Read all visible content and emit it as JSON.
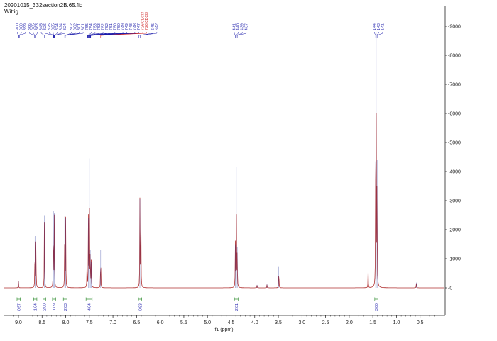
{
  "header": {
    "title": "20201015_332section2B.65.fid",
    "subtitle": "Wittig"
  },
  "chart_data": {
    "type": "line",
    "xlabel": "f1 (ppm)",
    "xlim": [
      9.3,
      0.0
    ],
    "ylim": [
      -1000,
      9500
    ],
    "x_ticks": [
      "9.0",
      "8.5",
      "8.0",
      "7.5",
      "7.0",
      "6.5",
      "6.0",
      "5.5",
      "5.0",
      "4.5",
      "4.0",
      "3.5",
      "3.0",
      "2.5",
      "2.0",
      "1.5",
      "1.0",
      "0.5"
    ],
    "y_ticks": [
      "-0",
      "-1000",
      "-2000",
      "-3000",
      "-4000",
      "-5000",
      "-6000",
      "-7000",
      "-8000",
      "-9000"
    ],
    "series": [
      {
        "peaks": [
          {
            "ppm": 9.0,
            "h": 230
          },
          {
            "ppm": 8.65,
            "h": 1750
          },
          {
            "ppm": 8.63,
            "h": 1780
          },
          {
            "ppm": 8.45,
            "h": 2500
          },
          {
            "ppm": 8.26,
            "h": 2650
          },
          {
            "ppm": 8.24,
            "h": 2560
          },
          {
            "ppm": 8.02,
            "h": 2470
          },
          {
            "ppm": 8.0,
            "h": 2400
          },
          {
            "ppm": 7.55,
            "h": 700
          },
          {
            "ppm": 7.52,
            "h": 2400
          },
          {
            "ppm": 7.5,
            "h": 4450
          },
          {
            "ppm": 7.48,
            "h": 1300
          },
          {
            "ppm": 7.46,
            "h": 900
          },
          {
            "ppm": 7.26,
            "h": 1300
          },
          {
            "ppm": 6.43,
            "h": 3050
          },
          {
            "ppm": 6.41,
            "h": 3000
          },
          {
            "ppm": 4.41,
            "h": 1500
          },
          {
            "ppm": 4.39,
            "h": 4150
          },
          {
            "ppm": 4.37,
            "h": 1400
          },
          {
            "ppm": 3.95,
            "h": 100
          },
          {
            "ppm": 3.74,
            "h": 120
          },
          {
            "ppm": 3.49,
            "h": 740
          },
          {
            "ppm": 1.6,
            "h": 620
          },
          {
            "ppm": 1.44,
            "h": 4350
          },
          {
            "ppm": 1.43,
            "h": 8800
          },
          {
            "ppm": 1.41,
            "h": 4400
          },
          {
            "ppm": 0.58,
            "h": 180
          }
        ]
      }
    ],
    "peak_labels": [
      {
        "ppm": 9.0,
        "text": "9.00"
      },
      {
        "ppm": 8.99,
        "text": "9.00"
      },
      {
        "ppm": 8.98,
        "text": "8.99"
      },
      {
        "ppm": 8.66,
        "text": "8.66"
      },
      {
        "ppm": 8.65,
        "text": "8.65"
      },
      {
        "ppm": 8.63,
        "text": "8.63"
      },
      {
        "ppm": 8.45,
        "text": "8.45"
      },
      {
        "ppm": 8.26,
        "text": "8.26"
      },
      {
        "ppm": 8.25,
        "text": "8.25"
      },
      {
        "ppm": 8.25,
        "text": "8.25"
      },
      {
        "ppm": 8.24,
        "text": "8.24"
      },
      {
        "ppm": 8.24,
        "text": "8.24"
      },
      {
        "ppm": 8.24,
        "text": "8.24"
      },
      {
        "ppm": 8.02,
        "text": "8.02"
      },
      {
        "ppm": 8.02,
        "text": "8.02"
      },
      {
        "ppm": 8.01,
        "text": "8.01"
      },
      {
        "ppm": 8.01,
        "text": "8.01"
      },
      {
        "ppm": 7.55,
        "text": "7.55"
      },
      {
        "ppm": 7.54,
        "text": "7.54"
      },
      {
        "ppm": 7.53,
        "text": "7.53"
      },
      {
        "ppm": 7.53,
        "text": "7.53"
      },
      {
        "ppm": 7.52,
        "text": "7.52"
      },
      {
        "ppm": 7.52,
        "text": "7.52"
      },
      {
        "ppm": 7.51,
        "text": "7.51"
      },
      {
        "ppm": 7.5,
        "text": "7.50"
      },
      {
        "ppm": 7.5,
        "text": "7.50"
      },
      {
        "ppm": 7.49,
        "text": "7.49"
      },
      {
        "ppm": 7.49,
        "text": "7.49"
      },
      {
        "ppm": 7.48,
        "text": "7.48"
      },
      {
        "ppm": 7.48,
        "text": "7.48"
      },
      {
        "ppm": 7.47,
        "text": "7.47"
      },
      {
        "ppm": 7.26,
        "text": "7.26 CDCl3",
        "color": "#d02020"
      },
      {
        "ppm": 7.26,
        "text": "7.26 CDCl3",
        "color": "#d02020"
      },
      {
        "ppm": 6.45,
        "text": "6.45"
      },
      {
        "ppm": 6.42,
        "text": "6.42"
      },
      {
        "ppm": 4.41,
        "text": "4.41"
      },
      {
        "ppm": 4.4,
        "text": "4.40"
      },
      {
        "ppm": 4.39,
        "text": "4.39"
      },
      {
        "ppm": 4.37,
        "text": "4.37"
      },
      {
        "ppm": 1.44,
        "text": "1.44"
      },
      {
        "ppm": 1.43,
        "text": "1.43"
      },
      {
        "ppm": 1.41,
        "text": "1.41"
      }
    ],
    "integrals": [
      {
        "from": 9.03,
        "to": 8.96,
        "value": "0.97"
      },
      {
        "from": 8.68,
        "to": 8.61,
        "value": "1.04"
      },
      {
        "from": 8.48,
        "to": 8.42,
        "value": "2.00"
      },
      {
        "from": 8.28,
        "to": 8.21,
        "value": "1.09"
      },
      {
        "from": 8.05,
        "to": 7.97,
        "value": "2.03"
      },
      {
        "from": 7.57,
        "to": 7.44,
        "value": "4.04"
      },
      {
        "from": 6.46,
        "to": 6.39,
        "value": "0.93"
      },
      {
        "from": 4.43,
        "to": 4.35,
        "value": "2.01"
      },
      {
        "from": 1.46,
        "to": 1.39,
        "value": "3.00"
      }
    ]
  }
}
